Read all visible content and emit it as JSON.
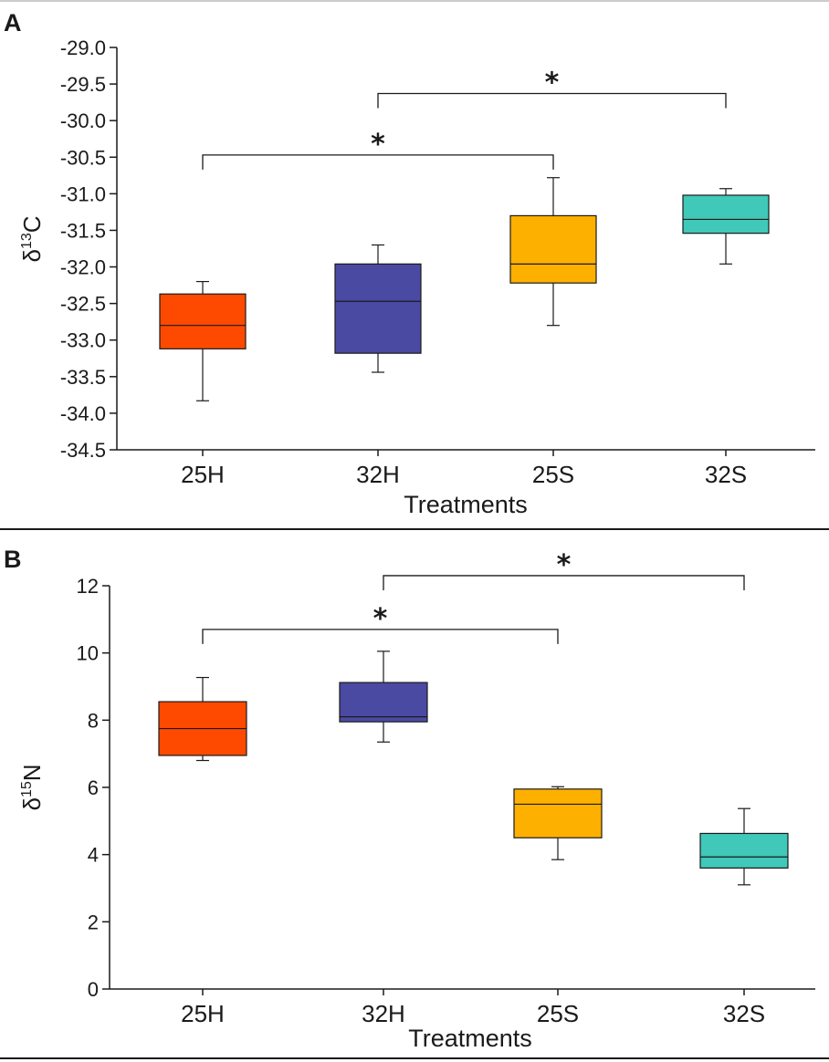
{
  "chart_data": [
    {
      "type": "boxplot",
      "panel_label": "A",
      "ylabel_base": "δ",
      "ylabel_sup": "13",
      "ylabel_element": "C",
      "xlabel": "Treatments",
      "ylim": [
        -34.5,
        -29.0
      ],
      "yticks": [
        "-29.0",
        "-29.5",
        "-30.0",
        "-30.5",
        "-31.0",
        "-31.5",
        "-32.0",
        "-32.5",
        "-33.0",
        "-33.5",
        "-34.0",
        "-34.5"
      ],
      "categories": [
        "25H",
        "32H",
        "25S",
        "32S"
      ],
      "colors": [
        "#fe4a01",
        "#4a4aa3",
        "#feb000",
        "#40c8b8"
      ],
      "boxes": [
        {
          "min": -33.83,
          "q1": -33.12,
          "median": -32.8,
          "q3": -32.37,
          "max": -32.2
        },
        {
          "min": -33.44,
          "q1": -33.18,
          "median": -32.47,
          "q3": -31.96,
          "max": -31.7
        },
        {
          "min": -32.8,
          "q1": -32.22,
          "median": -31.96,
          "q3": -31.3,
          "max": -30.78
        },
        {
          "min": -31.96,
          "q1": -31.54,
          "median": -31.35,
          "q3": -31.02,
          "max": -30.93
        }
      ],
      "significance": [
        {
          "from": "25H",
          "to": "25S",
          "y": -30.47,
          "label": "*"
        },
        {
          "from": "32H",
          "to": "32S",
          "y": -29.63,
          "label": "*"
        }
      ]
    },
    {
      "type": "boxplot",
      "panel_label": "B",
      "ylabel_base": "δ",
      "ylabel_sup": "15",
      "ylabel_element": "N",
      "xlabel": "Treatments",
      "ylim": [
        0,
        12
      ],
      "yticks": [
        "12",
        "10",
        "8",
        "6",
        "4",
        "2",
        "0"
      ],
      "categories": [
        "25H",
        "32H",
        "25S",
        "32S"
      ],
      "colors": [
        "#fe4a01",
        "#4a4aa3",
        "#feb000",
        "#40c8b8"
      ],
      "boxes": [
        {
          "min": 6.8,
          "q1": 6.95,
          "median": 7.75,
          "q3": 8.55,
          "max": 9.27
        },
        {
          "min": 7.35,
          "q1": 7.95,
          "median": 8.1,
          "q3": 9.12,
          "max": 10.05
        },
        {
          "min": 3.85,
          "q1": 4.5,
          "median": 5.5,
          "q3": 5.95,
          "max": 6.02
        },
        {
          "min": 3.1,
          "q1": 3.6,
          "median": 3.93,
          "q3": 4.63,
          "max": 5.37
        }
      ],
      "significance": [
        {
          "from": "25H",
          "to": "25S",
          "y": 10.7,
          "label": "*"
        },
        {
          "from": "32H",
          "to": "32S",
          "y": 12.3,
          "label": "*"
        }
      ]
    }
  ]
}
